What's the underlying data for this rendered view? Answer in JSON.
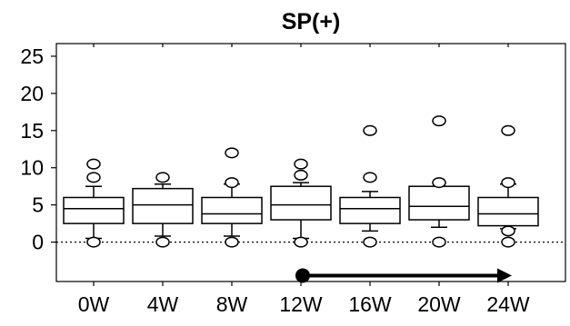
{
  "chart_data": {
    "type": "box",
    "title": "SP(+)",
    "xlabel": "",
    "ylabel": "",
    "categories": [
      "0W",
      "4W",
      "8W",
      "12W",
      "16W",
      "20W",
      "24W"
    ],
    "y_ticks": [
      0,
      5,
      10,
      15,
      20,
      25
    ],
    "ylim": [
      -5.3,
      26.7
    ],
    "reference_line": 0,
    "boxes": [
      {
        "category": "0W",
        "whisker_low": 0.5,
        "q1": 2.5,
        "median": 4.5,
        "q3": 6.0,
        "whisker_high": 7.5,
        "outliers": [
          0,
          8.7,
          10.5
        ]
      },
      {
        "category": "4W",
        "whisker_low": 0.8,
        "q1": 2.5,
        "median": 5.0,
        "q3": 7.2,
        "whisker_high": 7.8,
        "outliers": [
          0,
          8.7
        ]
      },
      {
        "category": "8W",
        "whisker_low": 0.8,
        "q1": 2.5,
        "median": 3.8,
        "q3": 6.0,
        "whisker_high": 7.8,
        "outliers": [
          0,
          8.0,
          12.0
        ]
      },
      {
        "category": "12W",
        "whisker_low": 0.5,
        "q1": 3.0,
        "median": 5.0,
        "q3": 7.5,
        "whisker_high": 8.0,
        "outliers": [
          0,
          9.0,
          10.5
        ]
      },
      {
        "category": "16W",
        "whisker_low": 1.5,
        "q1": 2.5,
        "median": 4.5,
        "q3": 6.0,
        "whisker_high": 6.8,
        "outliers": [
          0,
          8.7,
          15.0
        ]
      },
      {
        "category": "20W",
        "whisker_low": 2.0,
        "q1": 3.0,
        "median": 4.8,
        "q3": 7.5,
        "whisker_high": 7.5,
        "outliers": [
          0,
          8.0,
          16.3
        ]
      },
      {
        "category": "24W",
        "whisker_low": 1.8,
        "q1": 2.2,
        "median": 3.8,
        "q3": 6.0,
        "whisker_high": 7.8,
        "outliers": [
          0,
          1.5,
          8.0,
          15.0
        ]
      }
    ],
    "arrow": {
      "from_category": "12W",
      "to_category": "24W",
      "y": -4.5
    },
    "grid": false,
    "legend": "none"
  }
}
